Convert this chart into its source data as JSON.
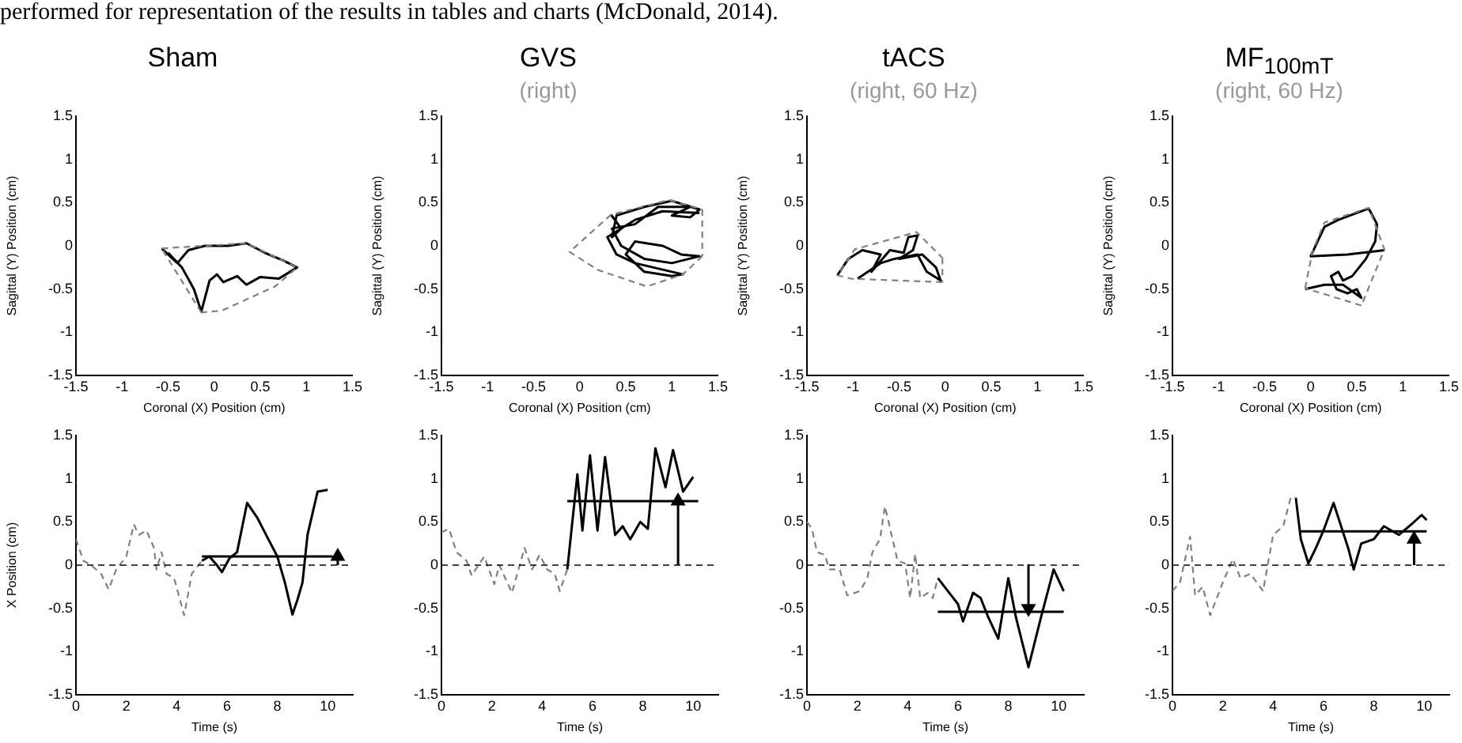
{
  "chart_data": [
    {
      "type": "line",
      "title": "Sham",
      "xlabel": "Coronal (X) Position (cm)",
      "ylabel": "Sagittal (Y) Position (cm)",
      "annotations": [
        "performed for representation of the results in tables and charts (McDonald, 2014)."
      ],
      "xlim": [
        -1.5,
        1.5
      ],
      "xticks": [
        -1.5,
        -1,
        -0.5,
        0,
        0.5,
        1,
        1.5
      ],
      "ylim": [
        -1.5,
        1.5
      ],
      "yticks": [
        -1.5,
        -1,
        -0.5,
        0,
        0.5,
        1,
        1.5
      ],
      "series": [
        {
          "color": "#808080",
          "line_style": "dashed",
          "x": [
            -0.57,
            0.35,
            0.9,
            0.66,
            0.08,
            -0.14
          ],
          "values": [
            -0.03,
            0.03,
            -0.25,
            -0.47,
            -0.75,
            -0.77
          ]
        },
        {
          "color": "#808080",
          "line_style": "dashed",
          "x": [
            -0.14,
            -0.57
          ],
          "values": [
            -0.77,
            -0.03
          ]
        },
        {
          "color": "#000000",
          "line_style": "solid",
          "x": [
            -0.57,
            -0.4,
            -0.28,
            -0.1,
            0.15,
            0.35,
            0.55,
            0.75,
            0.9,
            0.7,
            0.5,
            0.35,
            0.25,
            0.1,
            0.03,
            -0.05,
            -0.14,
            -0.22,
            -0.35,
            -0.5
          ],
          "values": [
            -0.03,
            -0.2,
            -0.05,
            0,
            0,
            0.03,
            -0.08,
            -0.17,
            -0.25,
            -0.38,
            -0.36,
            -0.45,
            -0.35,
            -0.42,
            -0.33,
            -0.4,
            -0.76,
            -0.5,
            -0.25,
            -0.08
          ]
        }
      ]
    },
    {
      "type": "line",
      "title": "GVS",
      "subtitle": "(right)",
      "xlabel": "Coronal (X) Position (cm)",
      "ylabel": "Sagittal (Y) Position (cm)",
      "xlim": [
        -1.5,
        1.5
      ],
      "xticks": [
        -1.5,
        -1,
        -0.5,
        0,
        0.5,
        1,
        1.5
      ],
      "ylim": [
        -1.5,
        1.5
      ],
      "yticks": [
        -1.5,
        -1,
        -0.5,
        0,
        0.5,
        1,
        1.5
      ],
      "series": [
        {
          "color": "#808080",
          "line_style": "dashed",
          "x": [
            1.33,
            1.12,
            0.73,
            0.2,
            -0.11,
            0.34,
            0.97,
            1.33
          ],
          "values": [
            -0.12,
            -0.33,
            -0.47,
            -0.28,
            -0.07,
            0.36,
            0.53,
            0.42
          ]
        },
        {
          "color": "#808080",
          "line_style": "dashed",
          "x": [
            1.33,
            1.33
          ],
          "values": [
            0.42,
            -0.12
          ]
        },
        {
          "color": "#000000",
          "line_style": "solid",
          "x": [
            0.34,
            0.45,
            0.35,
            0.4,
            0.7,
            1.0,
            1.3,
            1.2,
            1.0,
            1.2,
            0.85,
            0.6,
            0.35,
            0.45,
            0.7,
            1.0,
            1.3,
            1.1,
            0.9,
            0.6,
            0.5,
            0.7,
            1.0,
            1.12,
            0.8,
            0.6,
            0.4,
            0.3,
            0.6,
            0.9,
            1.3
          ],
          "values": [
            0.36,
            0.2,
            0.1,
            0.35,
            0.45,
            0.52,
            0.42,
            0.33,
            0.35,
            0.45,
            0.45,
            0.25,
            0.2,
            0.0,
            -0.15,
            -0.2,
            -0.12,
            -0.1,
            0.0,
            0.05,
            -0.1,
            -0.3,
            -0.35,
            -0.33,
            -0.25,
            -0.2,
            -0.1,
            0.1,
            0.3,
            0.4,
            0.38
          ]
        }
      ]
    },
    {
      "type": "line",
      "title": "tACS",
      "subtitle": "(right, 60 Hz)",
      "xlabel": "Coronal (X) Position (cm)",
      "ylabel": "Sagittal (Y) Position (cm)",
      "xlim": [
        -1.5,
        1.5
      ],
      "xticks": [
        -1.5,
        -1,
        -0.5,
        0,
        0.5,
        1,
        1.5
      ],
      "ylim": [
        -1.5,
        1.5
      ],
      "yticks": [
        -1.5,
        -1,
        -0.5,
        0,
        0.5,
        1,
        1.5
      ],
      "series": [
        {
          "color": "#808080",
          "line_style": "dashed",
          "x": [
            -0.03,
            -1.02,
            -1.17,
            -0.98,
            -0.31,
            -0.03
          ],
          "values": [
            -0.42,
            -0.38,
            -0.34,
            -0.04,
            0.16,
            -0.14
          ]
        },
        {
          "color": "#808080",
          "line_style": "dashed",
          "x": [
            -0.03,
            -0.03
          ],
          "values": [
            -0.14,
            -0.42
          ]
        },
        {
          "color": "#000000",
          "line_style": "solid",
          "x": [
            -1.17,
            -1.05,
            -0.9,
            -0.7,
            -0.8,
            -0.6,
            -0.45,
            -0.4,
            -0.3,
            -0.35,
            -0.5,
            -0.25,
            -0.1,
            -0.05,
            -0.2,
            -0.3,
            -0.55,
            -0.7,
            -0.95
          ],
          "values": [
            -0.34,
            -0.15,
            -0.05,
            -0.1,
            -0.3,
            -0.05,
            -0.08,
            0.1,
            0.12,
            -0.05,
            -0.15,
            -0.1,
            -0.25,
            -0.4,
            -0.3,
            -0.1,
            -0.15,
            -0.2,
            -0.38
          ]
        }
      ]
    },
    {
      "type": "line",
      "title": "MF$_{100mT}$",
      "subtitle": "(right, 60 Hz)",
      "xlabel": "Coronal (X) Position (cm)",
      "ylabel": "Sagittal (Y) Position (cm)",
      "xlim": [
        -1.5,
        1.5
      ],
      "xticks": [
        -1.5,
        -1,
        -0.5,
        0,
        0.5,
        1,
        1.5
      ],
      "ylim": [
        -1.5,
        1.5
      ],
      "yticks": [
        -1.5,
        -1,
        -0.5,
        0,
        0.5,
        1,
        1.5
      ],
      "series": [
        {
          "color": "#808080",
          "line_style": "dashed",
          "x": [
            -0.06,
            0.02,
            0.15,
            0.63,
            0.8,
            0.55
          ],
          "values": [
            -0.49,
            -0.06,
            0.27,
            0.44,
            -0.04,
            -0.69
          ]
        },
        {
          "color": "#808080",
          "line_style": "dashed",
          "x": [
            0.55,
            -0.06
          ],
          "values": [
            -0.69,
            -0.49
          ]
        },
        {
          "color": "#000000",
          "line_style": "solid",
          "x": [
            0.8,
            0.4,
            0.0,
            0.15,
            0.3,
            0.5,
            0.63,
            0.72,
            0.7,
            0.6,
            0.45,
            0.35,
            0.3,
            0.22,
            0.28,
            0.4,
            0.5,
            0.55,
            0.35,
            0.15,
            -0.06
          ],
          "values": [
            -0.05,
            -0.1,
            -0.12,
            0.22,
            0.3,
            0.38,
            0.43,
            0.25,
            0.05,
            -0.15,
            -0.35,
            -0.4,
            -0.3,
            -0.35,
            -0.5,
            -0.55,
            -0.5,
            -0.6,
            -0.45,
            -0.45,
            -0.5
          ]
        }
      ]
    },
    {
      "type": "line",
      "xlabel": "Time (s)",
      "ylabel": "X Position (cm)",
      "xlim": [
        0,
        11
      ],
      "xticks": [
        0,
        2,
        4,
        6,
        8,
        10
      ],
      "ylim": [
        -1.5,
        1.5
      ],
      "yticks": [
        -1.5,
        -1,
        -0.5,
        0,
        0.5,
        1,
        1.5
      ],
      "ref_lines": [
        {
          "axis": "y",
          "value": 0,
          "color": "#000000",
          "line_style": "dashed"
        }
      ],
      "series": [
        {
          "color": "#808080",
          "line_style": "dashed",
          "x": [
            0,
            0.3,
            0.6,
            1.0,
            1.3,
            1.6,
            2.0,
            2.3,
            2.5,
            2.8,
            3.1,
            3.2,
            3.4,
            3.6,
            3.9,
            4.3,
            4.6,
            5.0
          ],
          "values": [
            0.3,
            0.05,
            0,
            -0.1,
            -0.28,
            -0.05,
            0.1,
            0.47,
            0.35,
            0.4,
            0.2,
            -0.05,
            0.15,
            -0.1,
            -0.15,
            -0.58,
            -0.1,
            0.05
          ]
        },
        {
          "color": "#000000",
          "line_style": "solid",
          "x": [
            5.0,
            5.3,
            5.6,
            5.8,
            6.1,
            6.4,
            6.8,
            7.2,
            7.5,
            8.0,
            8.3,
            8.6,
            8.8,
            9.0,
            9.2,
            9.6,
            10.0
          ],
          "values": [
            0.05,
            0.1,
            0.0,
            -0.08,
            0.08,
            0.15,
            0.72,
            0.55,
            0.38,
            0.1,
            -0.2,
            -0.57,
            -0.4,
            -0.2,
            0.35,
            0.85,
            0.87
          ]
        },
        {
          "color": "#000000",
          "line_style": "solid",
          "x": [
            5,
            10.2
          ],
          "values": [
            0.1,
            0.1
          ]
        },
        {
          "color": "#000000",
          "line_style": "solid",
          "marker": "triangle",
          "x": [
            10.4,
            10.4
          ],
          "values": [
            0,
            0.1
          ]
        }
      ]
    },
    {
      "type": "line",
      "xlabel": "Time (s)",
      "xlim": [
        0,
        11
      ],
      "xticks": [
        0,
        2,
        4,
        6,
        8,
        10
      ],
      "ylim": [
        -1.5,
        1.5
      ],
      "yticks": [
        -1.5,
        -1,
        -0.5,
        0,
        0.5,
        1,
        1.5
      ],
      "ref_lines": [
        {
          "axis": "y",
          "value": 0,
          "color": "#000000",
          "line_style": "dashed"
        }
      ],
      "series": [
        {
          "color": "#808080",
          "line_style": "dashed",
          "x": [
            0,
            0.3,
            0.6,
            1.0,
            1.2,
            1.7,
            2.1,
            2.3,
            2.8,
            3.3,
            3.6,
            3.9,
            4.2,
            4.5,
            4.7,
            5.0
          ],
          "values": [
            0.38,
            0.42,
            0.15,
            0.05,
            -0.12,
            0.1,
            -0.22,
            0,
            -0.32,
            0.2,
            -0.05,
            0.12,
            -0.05,
            -0.1,
            -0.3,
            -0.05
          ]
        },
        {
          "color": "#000000",
          "line_style": "solid",
          "x": [
            5.0,
            5.4,
            5.6,
            5.9,
            6.2,
            6.5,
            6.9,
            7.2,
            7.5,
            7.9,
            8.2,
            8.5,
            8.9,
            9.2,
            9.6,
            10.0
          ],
          "values": [
            -0.05,
            1.05,
            0.4,
            1.27,
            0.4,
            1.25,
            0.35,
            0.45,
            0.3,
            0.5,
            0.42,
            1.35,
            0.9,
            1.33,
            0.85,
            1.02
          ]
        },
        {
          "color": "#000000",
          "line_style": "solid",
          "x": [
            5,
            10.2
          ],
          "values": [
            0.74,
            0.74
          ]
        },
        {
          "color": "#000000",
          "line_style": "solid",
          "marker": "triangle",
          "x": [
            9.4,
            9.4
          ],
          "values": [
            0,
            0.74
          ]
        }
      ]
    },
    {
      "type": "line",
      "xlabel": "Time (s)",
      "xlim": [
        0,
        11
      ],
      "xticks": [
        0,
        2,
        4,
        6,
        8,
        10
      ],
      "ylim": [
        -1.5,
        1.5
      ],
      "yticks": [
        -1.5,
        -1,
        -0.5,
        0,
        0.5,
        1,
        1.5
      ],
      "ref_lines": [
        {
          "axis": "y",
          "value": 0,
          "color": "#000000",
          "line_style": "dashed"
        }
      ],
      "series": [
        {
          "color": "#808080",
          "line_style": "dashed",
          "x": [
            0,
            0.2,
            0.4,
            0.7,
            0.9,
            1.3,
            1.6,
            2.1,
            2.4,
            2.6,
            2.9,
            3.1,
            3.4,
            3.6,
            3.9,
            4.1,
            4.3,
            4.5,
            4.8,
            5.0,
            5.2
          ],
          "values": [
            0.5,
            0.42,
            0.15,
            0.12,
            -0.05,
            -0.05,
            -0.35,
            -0.3,
            -0.15,
            0.15,
            0.3,
            0.68,
            0.3,
            0.05,
            0.02,
            -0.38,
            0.13,
            -0.38,
            -0.32,
            -0.38,
            -0.15
          ]
        },
        {
          "color": "#000000",
          "line_style": "solid",
          "x": [
            5.2,
            5.6,
            6.0,
            6.2,
            6.6,
            6.9,
            7.2,
            7.6,
            7.8,
            8.0,
            8.3,
            8.8,
            9.3,
            9.8,
            10.2
          ],
          "values": [
            -0.15,
            -0.3,
            -0.45,
            -0.65,
            -0.32,
            -0.38,
            -0.6,
            -0.85,
            -0.5,
            -0.15,
            -0.6,
            -1.18,
            -0.6,
            -0.05,
            -0.3
          ]
        },
        {
          "color": "#000000",
          "line_style": "solid",
          "x": [
            5.2,
            10.2
          ],
          "values": [
            -0.54,
            -0.54
          ]
        },
        {
          "color": "#000000",
          "line_style": "solid",
          "marker": "triangle",
          "x": [
            8.8,
            8.8
          ],
          "values": [
            0,
            -0.5
          ]
        }
      ]
    },
    {
      "type": "line",
      "xlabel": "Time (s)",
      "xlim": [
        0,
        11
      ],
      "xticks": [
        0,
        2,
        4,
        6,
        8,
        10
      ],
      "ylim": [
        -1.5,
        1.5
      ],
      "yticks": [
        -1.5,
        -1,
        -0.5,
        0,
        0.5,
        1,
        1.5
      ],
      "ref_lines": [
        {
          "axis": "y",
          "value": 0,
          "color": "#000000",
          "line_style": "dashed"
        }
      ],
      "series": [
        {
          "color": "#808080",
          "line_style": "dashed",
          "x": [
            0,
            0.3,
            0.7,
            0.9,
            1.2,
            1.5,
            2.0,
            2.4,
            2.7,
            3.1,
            3.6,
            4.0,
            4.4,
            4.7,
            4.9
          ],
          "values": [
            -0.3,
            -0.2,
            0.33,
            -0.35,
            -0.25,
            -0.58,
            -0.2,
            0.07,
            -0.15,
            -0.1,
            -0.3,
            0.35,
            0.45,
            0.78,
            0.78
          ]
        },
        {
          "color": "#000000",
          "line_style": "solid",
          "x": [
            4.9,
            5.1,
            5.4,
            5.7,
            6.0,
            6.4,
            6.7,
            7.0,
            7.2,
            7.5,
            8.0,
            8.4,
            9.0,
            9.6,
            9.9,
            10.1
          ],
          "values": [
            0.78,
            0.3,
            0.02,
            0.2,
            0.4,
            0.72,
            0.45,
            0.18,
            -0.05,
            0.25,
            0.3,
            0.45,
            0.35,
            0.5,
            0.58,
            0.52
          ]
        },
        {
          "color": "#000000",
          "line_style": "solid",
          "x": [
            5.1,
            10.1
          ],
          "values": [
            0.39,
            0.39
          ]
        },
        {
          "color": "#000000",
          "line_style": "solid",
          "marker": "triangle",
          "x": [
            9.6,
            9.6
          ],
          "values": [
            0,
            0.3
          ]
        }
      ]
    }
  ]
}
